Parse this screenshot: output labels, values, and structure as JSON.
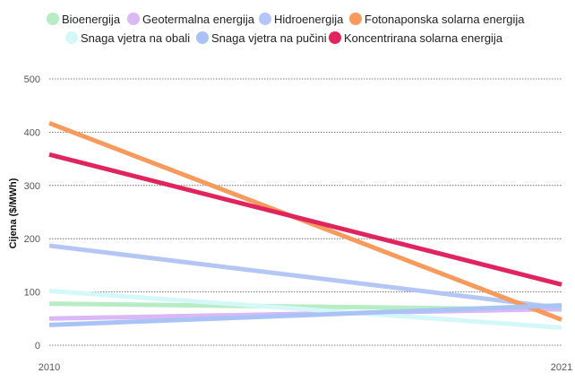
{
  "chart_data": {
    "type": "line",
    "title": "",
    "xlabel": "",
    "ylabel": "Cijena ($/MWh)",
    "x": [
      2010,
      2021
    ],
    "xlim": [
      2010,
      2021
    ],
    "ylim": [
      0,
      500
    ],
    "y_ticks": [
      0,
      100,
      200,
      300,
      400,
      500
    ],
    "x_tick_labels": [
      "2010",
      "2021"
    ],
    "grid": "horizontal dotted",
    "legend_position": "top",
    "series": [
      {
        "name": "Bioenergija",
        "color": "#b7ecc4",
        "values": [
          78,
          67
        ]
      },
      {
        "name": "Geotermalna energija",
        "color": "#d9b8f5",
        "values": [
          50,
          68
        ]
      },
      {
        "name": "Hidroenergija",
        "color": "#b3c6f5",
        "values": [
          187,
          70
        ]
      },
      {
        "name": "Fotonaponska solarna energija",
        "color": "#f79a5c",
        "values": [
          417,
          48
        ]
      },
      {
        "name": "Snaga vjetra na obali",
        "color": "#d4f7f7",
        "values": [
          102,
          33
        ]
      },
      {
        "name": "Snaga vjetra na pučini",
        "color": "#a9c3f7",
        "values": [
          38,
          75
        ]
      },
      {
        "name": "Koncentrirana solarna energija",
        "color": "#e0245e",
        "values": [
          358,
          114
        ]
      }
    ]
  }
}
